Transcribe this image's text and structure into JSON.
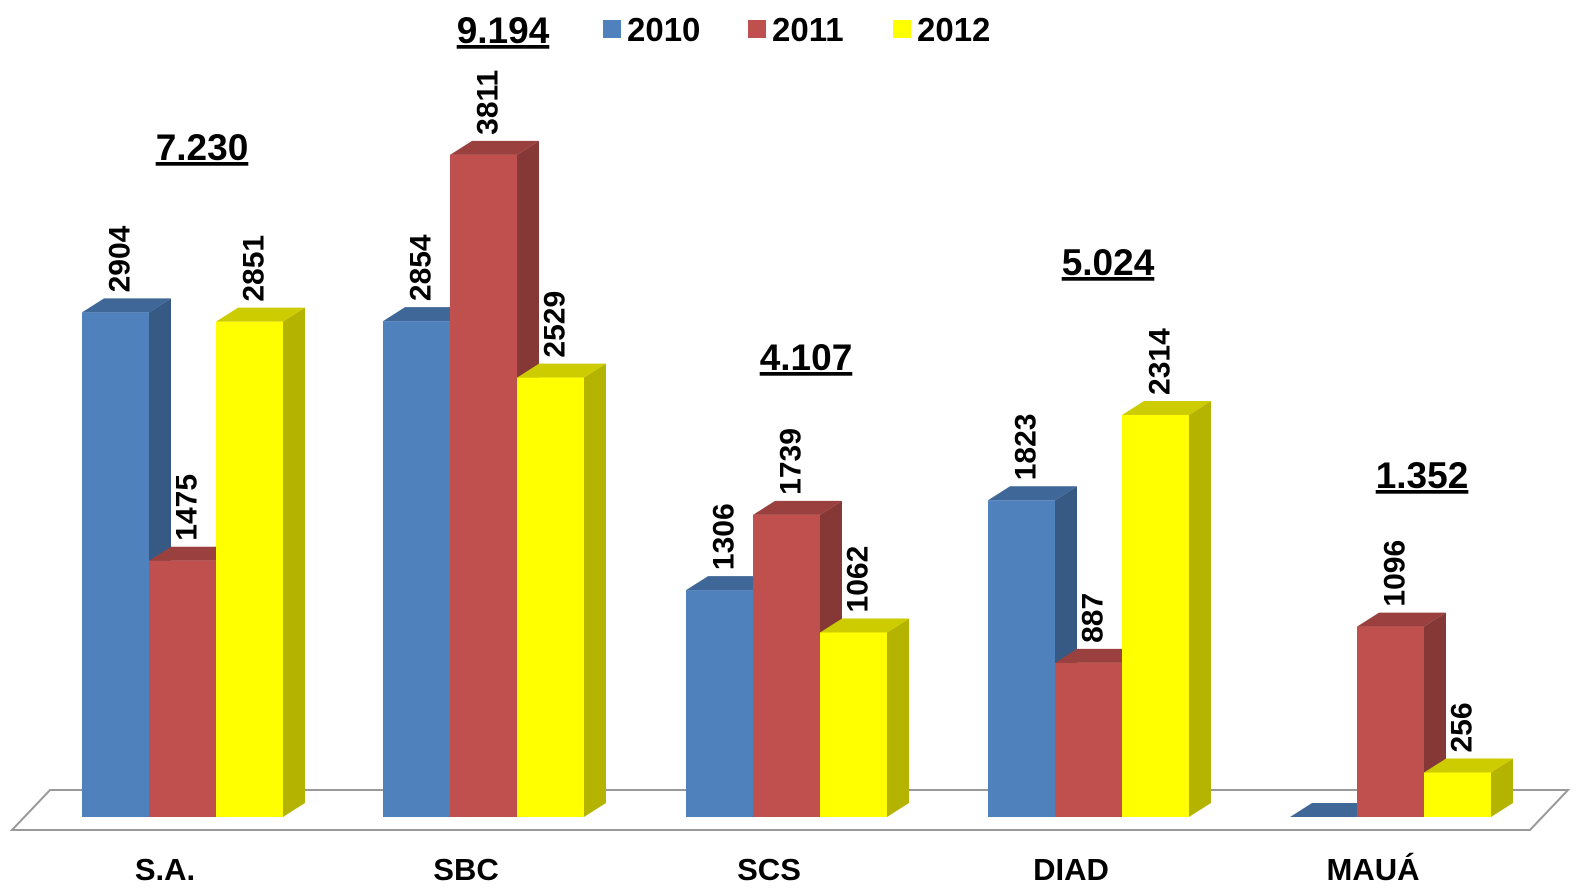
{
  "chart_data": {
    "type": "bar3d",
    "categories": [
      "S.A.",
      "SBC",
      "SCS",
      "DIAD",
      "MAUÁ"
    ],
    "series": [
      {
        "name": "2010",
        "color": "#4f81bd",
        "values": [
          2904,
          2854,
          1306,
          1823,
          0
        ]
      },
      {
        "name": "2011",
        "color": "#c0504d",
        "values": [
          1475,
          3811,
          1739,
          887,
          1096
        ]
      },
      {
        "name": "2012",
        "color": "#ffff00",
        "values": [
          2851,
          2529,
          1062,
          2314,
          256
        ]
      }
    ],
    "annotations": [
      "7.230",
      "9.194",
      "4.107",
      "5.024",
      "1.352"
    ],
    "ylim": [
      0,
      4000
    ]
  }
}
